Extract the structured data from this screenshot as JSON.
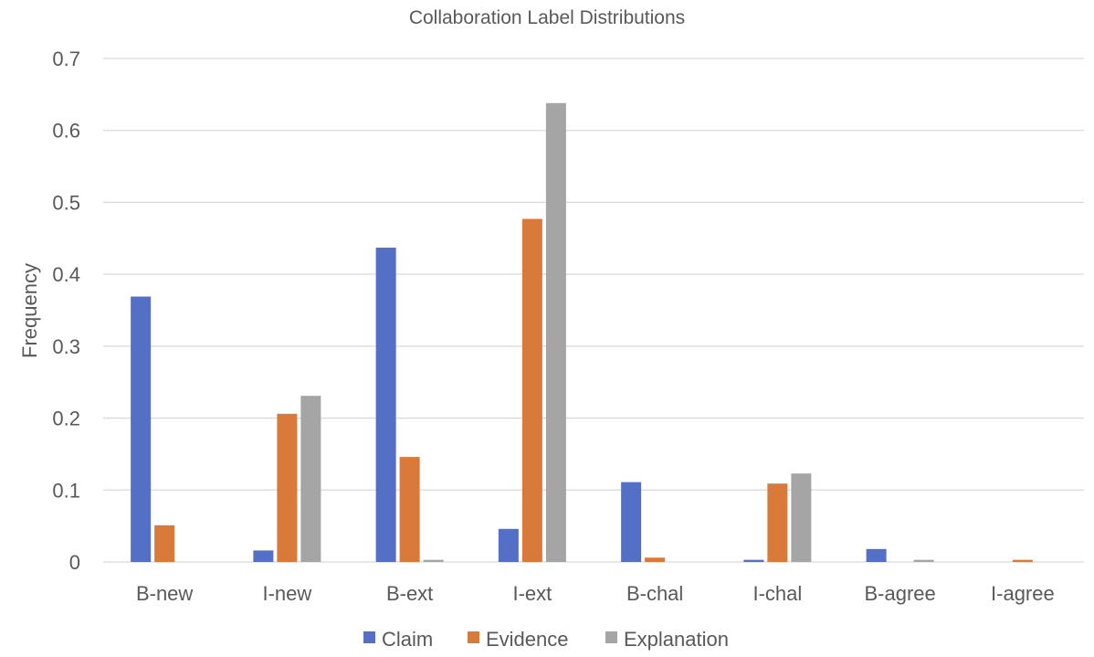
{
  "chart_data": {
    "type": "bar",
    "title": "Collaboration Label Distributions",
    "ylabel": "Frequency",
    "xlabel": "",
    "ylim": [
      0,
      0.7
    ],
    "yticks": [
      "0",
      "0.1",
      "0.2",
      "0.3",
      "0.4",
      "0.5",
      "0.6",
      "0.7"
    ],
    "grid": true,
    "legend_position": "bottom",
    "categories": [
      "B-new",
      "I-new",
      "B-ext",
      "I-ext",
      "B-chal",
      "I-chal",
      "B-agree",
      "I-agree"
    ],
    "series": [
      {
        "name": "Claim",
        "color": "#5470c6",
        "values": [
          0.369,
          0.016,
          0.437,
          0.046,
          0.111,
          0.003,
          0.018,
          0.0
        ]
      },
      {
        "name": "Evidence",
        "color": "#d97a3a",
        "values": [
          0.051,
          0.206,
          0.146,
          0.477,
          0.006,
          0.109,
          0.0,
          0.003
        ]
      },
      {
        "name": "Explanation",
        "color": "#a5a5a5",
        "values": [
          0.0,
          0.231,
          0.003,
          0.638,
          0.0,
          0.123,
          0.003,
          0.0
        ]
      }
    ]
  }
}
